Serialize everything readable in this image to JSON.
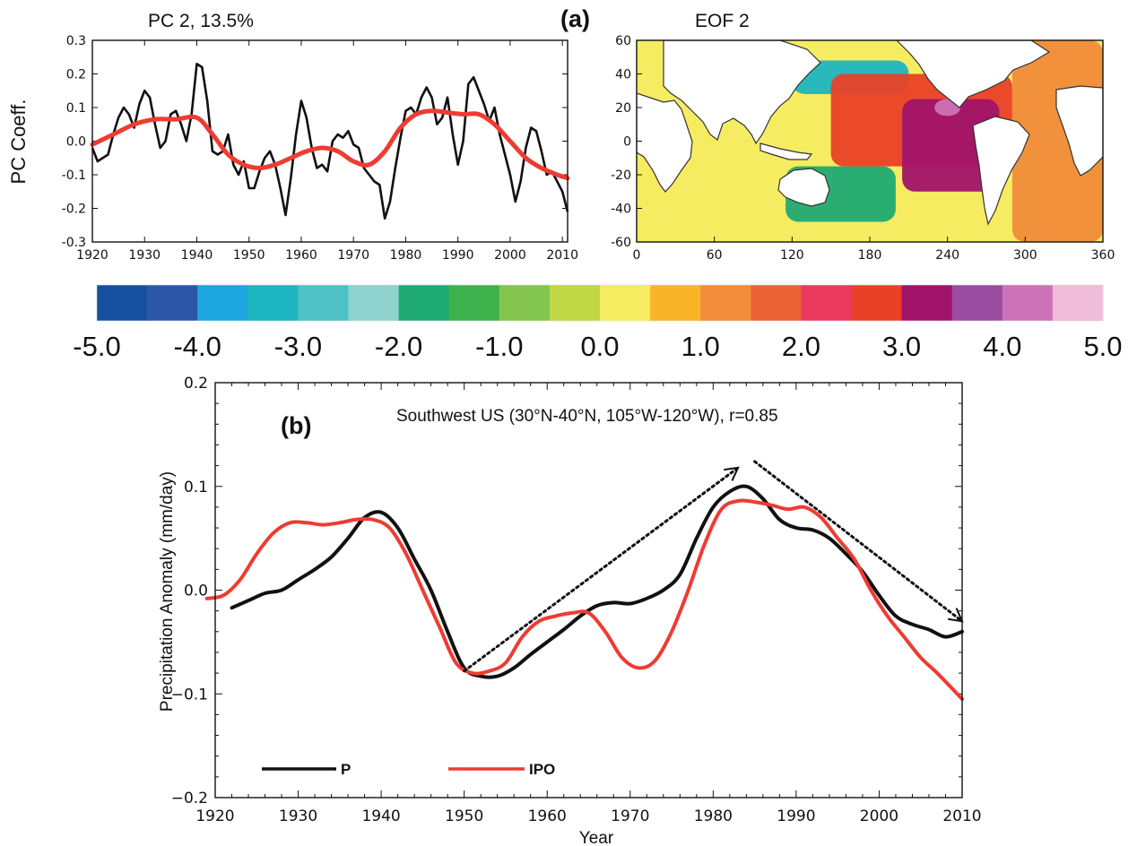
{
  "colors": {
    "black": "#111111",
    "red": "#ee3b33",
    "ocean_default": "#f6e96b",
    "land": "#ffffff"
  },
  "panel_a_label": "(a)",
  "pc_title": "PC 2, 13.5%",
  "pc_ylabel": "PC Coeff.",
  "eof_title": "EOF 2",
  "panel_b_label": "(b)",
  "panel_b_annotation": "Southwest US (30°N-40°N, 105°W-120°W), r=0.85",
  "panel_b_ylabel": "Precipitation Anomaly (mm/day)",
  "panel_b_xlabel": "Year",
  "legend": {
    "p": "P",
    "ipo": "IPO"
  },
  "chart_data": [
    {
      "type": "line",
      "title": "PC 2, 13.5%",
      "ylabel": "PC Coeff.",
      "xlim": [
        1920,
        2011
      ],
      "ylim": [
        -0.3,
        0.3
      ],
      "xticks": [
        "1920",
        "1930",
        "1940",
        "1950",
        "1960",
        "1970",
        "1980",
        "1990",
        "2000",
        "2010"
      ],
      "yticks": [
        "0.3",
        "0.2",
        "0.1",
        "0.0",
        "-0.1",
        "-0.2",
        "-0.3"
      ],
      "series": [
        {
          "color": "#111111",
          "x": [
            1920,
            1921,
            1922,
            1923,
            1924,
            1925,
            1926,
            1927,
            1928,
            1929,
            1930,
            1931,
            1932,
            1933,
            1934,
            1935,
            1936,
            1937,
            1938,
            1939,
            1940,
            1941,
            1942,
            1943,
            1944,
            1945,
            1946,
            1947,
            1948,
            1949,
            1950,
            1951,
            1952,
            1953,
            1954,
            1955,
            1956,
            1957,
            1958,
            1959,
            1960,
            1961,
            1962,
            1963,
            1964,
            1965,
            1966,
            1967,
            1968,
            1969,
            1970,
            1971,
            1972,
            1973,
            1974,
            1975,
            1976,
            1977,
            1978,
            1979,
            1980,
            1981,
            1982,
            1983,
            1984,
            1985,
            1986,
            1987,
            1988,
            1989,
            1990,
            1991,
            1992,
            1993,
            1994,
            1995,
            1996,
            1997,
            1998,
            1999,
            2000,
            2001,
            2002,
            2003,
            2004,
            2005,
            2006,
            2007,
            2008,
            2009,
            2010,
            2011
          ],
          "y": [
            -0.02,
            -0.06,
            -0.05,
            -0.04,
            0.02,
            0.07,
            0.1,
            0.08,
            0.04,
            0.11,
            0.15,
            0.13,
            0.05,
            -0.02,
            0.0,
            0.08,
            0.09,
            0.05,
            0.0,
            0.08,
            0.23,
            0.22,
            0.12,
            -0.03,
            -0.04,
            -0.03,
            0.02,
            -0.07,
            -0.1,
            -0.06,
            -0.14,
            -0.14,
            -0.09,
            -0.05,
            -0.03,
            -0.07,
            -0.14,
            -0.22,
            -0.11,
            0.02,
            0.12,
            0.07,
            -0.02,
            -0.08,
            -0.07,
            -0.09,
            0.0,
            0.02,
            0.01,
            0.03,
            -0.01,
            -0.02,
            -0.08,
            -0.1,
            -0.12,
            -0.13,
            -0.23,
            -0.18,
            -0.08,
            0.01,
            0.09,
            0.1,
            0.08,
            0.13,
            0.16,
            0.13,
            0.05,
            0.07,
            0.13,
            0.02,
            -0.07,
            0.0,
            0.17,
            0.19,
            0.15,
            0.11,
            0.06,
            0.1,
            0.02,
            -0.04,
            -0.1,
            -0.18,
            -0.12,
            -0.02,
            0.04,
            0.03,
            -0.03,
            -0.1,
            -0.09,
            -0.12,
            -0.15,
            -0.21
          ]
        },
        {
          "color": "#ee3b33",
          "x": [
            1920,
            1924,
            1928,
            1932,
            1936,
            1940,
            1943,
            1946,
            1949,
            1952,
            1955,
            1958,
            1961,
            1964,
            1967,
            1970,
            1973,
            1976,
            1979,
            1982,
            1985,
            1988,
            1991,
            1994,
            1997,
            2000,
            2003,
            2006,
            2009,
            2011
          ],
          "y": [
            -0.01,
            0.02,
            0.05,
            0.065,
            0.065,
            0.07,
            0.02,
            -0.04,
            -0.07,
            -0.08,
            -0.07,
            -0.05,
            -0.03,
            -0.02,
            -0.03,
            -0.06,
            -0.07,
            -0.03,
            0.04,
            0.08,
            0.09,
            0.085,
            0.08,
            0.08,
            0.05,
            0.0,
            -0.05,
            -0.08,
            -0.1,
            -0.11
          ]
        }
      ]
    },
    {
      "type": "heatmap",
      "title": "EOF 2",
      "xlim": [
        0,
        360
      ],
      "ylim": [
        -60,
        60
      ],
      "xticks": [
        "0",
        "60",
        "120",
        "180",
        "240",
        "300",
        "360"
      ],
      "yticks": [
        "60",
        "40",
        "20",
        "0",
        "-20",
        "-40",
        "-60"
      ],
      "colorbar": {
        "ticks": [
          "-5.0",
          "-4.0",
          "-3.0",
          "-2.0",
          "-1.0",
          "0.0",
          "1.0",
          "2.0",
          "3.0",
          "4.0",
          "5.0"
        ],
        "colors": [
          "#16519f",
          "#2c56a8",
          "#1ea6e0",
          "#1db5c0",
          "#4ec1c4",
          "#8fd3cf",
          "#1faa73",
          "#3eb14c",
          "#84c54f",
          "#c0d746",
          "#f5ec62",
          "#f8b52a",
          "#f08c3a",
          "#ec6237",
          "#e93a5e",
          "#e94126",
          "#a1136a",
          "#9a4da0",
          "#cd72b6",
          "#f0bdd8"
        ]
      },
      "regions": [
        {
          "lon": [
            0,
            110
          ],
          "lat": [
            -60,
            60
          ],
          "value": 0.4
        },
        {
          "lon": [
            120,
            210
          ],
          "lat": [
            28,
            48
          ],
          "value": -3.2
        },
        {
          "lon": [
            115,
            200
          ],
          "lat": [
            -48,
            -15
          ],
          "value": -1.6
        },
        {
          "lon": [
            150,
            290
          ],
          "lat": [
            -15,
            40
          ],
          "value": 2.6
        },
        {
          "lon": [
            205,
            280
          ],
          "lat": [
            -30,
            25
          ],
          "value": 3.2
        },
        {
          "lon": [
            230,
            250
          ],
          "lat": [
            15,
            25
          ],
          "value": 4.2
        },
        {
          "lon": [
            290,
            360
          ],
          "lat": [
            -60,
            60
          ],
          "value": 1.2
        }
      ]
    },
    {
      "type": "line",
      "title": "",
      "xlabel": "Year",
      "ylabel": "Precipitation Anomaly (mm/day)",
      "xlim": [
        1920,
        2010
      ],
      "ylim": [
        -0.2,
        0.2
      ],
      "xticks": [
        "1920",
        "1930",
        "1940",
        "1950",
        "1960",
        "1970",
        "1980",
        "1990",
        "2000",
        "2010"
      ],
      "yticks": [
        "0.2",
        "0.1",
        "0.0",
        "−0.1",
        "−0.2"
      ],
      "annotation": "Southwest US (30°N-40°N, 105°W-120°W), r=0.85",
      "series": [
        {
          "name": "P",
          "color": "#111111",
          "x": [
            1922,
            1924,
            1926,
            1928,
            1930,
            1932,
            1934,
            1936,
            1938,
            1940,
            1942,
            1944,
            1946,
            1948,
            1950,
            1952,
            1954,
            1956,
            1958,
            1960,
            1962,
            1964,
            1966,
            1968,
            1970,
            1972,
            1974,
            1976,
            1978,
            1980,
            1982,
            1984,
            1986,
            1988,
            1990,
            1992,
            1994,
            1996,
            1998,
            2000,
            2002,
            2004,
            2006,
            2008,
            2010
          ],
          "y": [
            -0.017,
            -0.01,
            -0.003,
            0.0,
            0.01,
            0.02,
            0.032,
            0.05,
            0.07,
            0.075,
            0.06,
            0.03,
            0.0,
            -0.04,
            -0.075,
            -0.083,
            -0.083,
            -0.075,
            -0.062,
            -0.05,
            -0.038,
            -0.025,
            -0.015,
            -0.012,
            -0.013,
            -0.008,
            0.0,
            0.015,
            0.05,
            0.08,
            0.095,
            0.1,
            0.088,
            0.068,
            0.06,
            0.058,
            0.05,
            0.035,
            0.018,
            -0.005,
            -0.025,
            -0.033,
            -0.038,
            -0.045,
            -0.04
          ]
        },
        {
          "name": "IPO",
          "color": "#ee3b33",
          "x": [
            1919,
            1921,
            1923,
            1925,
            1927,
            1929,
            1931,
            1933,
            1935,
            1937,
            1939,
            1941,
            1943,
            1945,
            1947,
            1949,
            1951,
            1953,
            1955,
            1957,
            1959,
            1961,
            1963,
            1965,
            1967,
            1969,
            1971,
            1973,
            1975,
            1977,
            1979,
            1981,
            1983,
            1985,
            1987,
            1989,
            1991,
            1993,
            1995,
            1997,
            1999,
            2001,
            2003,
            2005,
            2007,
            2010
          ],
          "y": [
            -0.008,
            -0.005,
            0.01,
            0.035,
            0.055,
            0.065,
            0.065,
            0.063,
            0.065,
            0.068,
            0.068,
            0.06,
            0.035,
            0.0,
            -0.035,
            -0.07,
            -0.08,
            -0.078,
            -0.07,
            -0.045,
            -0.03,
            -0.025,
            -0.022,
            -0.022,
            -0.04,
            -0.065,
            -0.075,
            -0.068,
            -0.04,
            0.0,
            0.045,
            0.078,
            0.086,
            0.085,
            0.082,
            0.078,
            0.08,
            0.07,
            0.05,
            0.03,
            0.0,
            -0.025,
            -0.045,
            -0.065,
            -0.08,
            -0.105
          ]
        }
      ],
      "arrows": [
        {
          "from": [
            1950,
            -0.078
          ],
          "to": [
            1983,
            0.118
          ]
        },
        {
          "from": [
            1985,
            0.124
          ],
          "to": [
            2010,
            -0.03
          ]
        }
      ]
    }
  ]
}
